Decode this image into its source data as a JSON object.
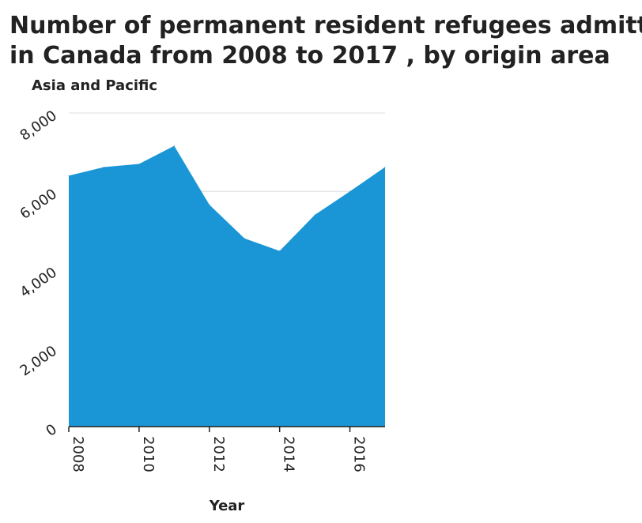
{
  "chart_data": {
    "type": "area",
    "title_lines": [
      "Number of permanent resident refugees admitted",
      "in Canada from 2008 to 2017 , by origin area"
    ],
    "ylabel": "Asia and Pacific",
    "xlabel": "Year",
    "x": [
      2008,
      2009,
      2010,
      2011,
      2012,
      2013,
      2014,
      2015,
      2016,
      2017
    ],
    "values": [
      6400,
      6620,
      6700,
      7160,
      5660,
      4800,
      4480,
      5400,
      6000,
      6620
    ],
    "xlim": [
      2008,
      2017
    ],
    "ylim": [
      0,
      8000
    ],
    "x_ticks": [
      2008,
      2010,
      2012,
      2014,
      2016
    ],
    "x_tick_labels": [
      "2008",
      "2010",
      "2012",
      "2014",
      "2016"
    ],
    "y_ticks": [
      0,
      2000,
      4000,
      6000,
      8000
    ],
    "y_tick_labels": [
      "0",
      "2,000",
      "4,000",
      "6,000",
      "8,000"
    ],
    "grid": true,
    "fill_color": "#1a96d6",
    "axis_color": "#222222",
    "grid_color": "#dddddd"
  }
}
